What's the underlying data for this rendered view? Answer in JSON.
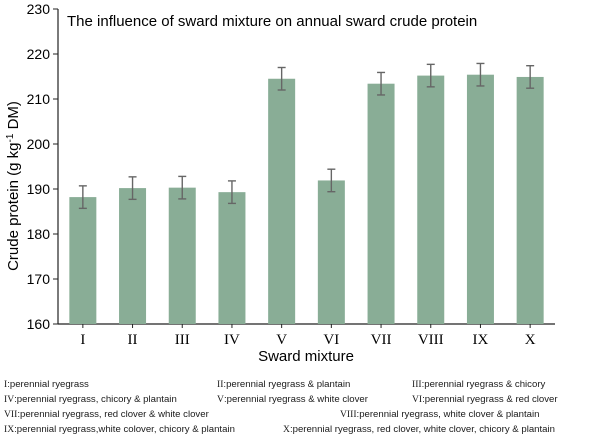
{
  "chart_data": {
    "type": "bar",
    "title": "The influence of sward mixture on annual sward crude protein",
    "xlabel": "Sward mixture",
    "ylabel_prefix": "Crude protein (g kg",
    "ylabel_sup": "-1",
    "ylabel_suffix": " DM)",
    "ylim": [
      160,
      230
    ],
    "yticks": [
      "160",
      "170",
      "180",
      "190",
      "200",
      "210",
      "220",
      "230"
    ],
    "categories": [
      "I",
      "II",
      "III",
      "IV",
      "V",
      "VI",
      "VII",
      "VIII",
      "IX",
      "X"
    ],
    "values": [
      188.2,
      190.2,
      190.3,
      189.3,
      214.5,
      191.9,
      213.4,
      215.2,
      215.4,
      214.9
    ],
    "errors": [
      2.5,
      2.5,
      2.5,
      2.5,
      2.5,
      2.5,
      2.5,
      2.5,
      2.5,
      2.5
    ],
    "bar_color": "#89ad96",
    "error_color": "#666666",
    "grid": false
  },
  "legend": [
    {
      "key": "I",
      "text": "perennial ryegrass"
    },
    {
      "key": "II",
      "text": "perennial ryegrass & plantain"
    },
    {
      "key": "III",
      "text": "perennial ryegrass & chicory"
    },
    {
      "key": "IV",
      "text": "perennial ryegrass, chicory & plantain"
    },
    {
      "key": "V",
      "text": "perennial ryegrass & white clover"
    },
    {
      "key": "VI",
      "text": "perennial ryegrass & red clover"
    },
    {
      "key": "VII",
      "text": "perennial ryegrass, red clover & white clover"
    },
    {
      "key": "VIII",
      "text": "perennial ryegrass, white clover & plantain"
    },
    {
      "key": "IX",
      "text": "perennial ryegrass,white colover, chicory & plantain"
    },
    {
      "key": "X",
      "text": "perennial ryegrass, red clover, white clover, chicory & plantain"
    }
  ]
}
